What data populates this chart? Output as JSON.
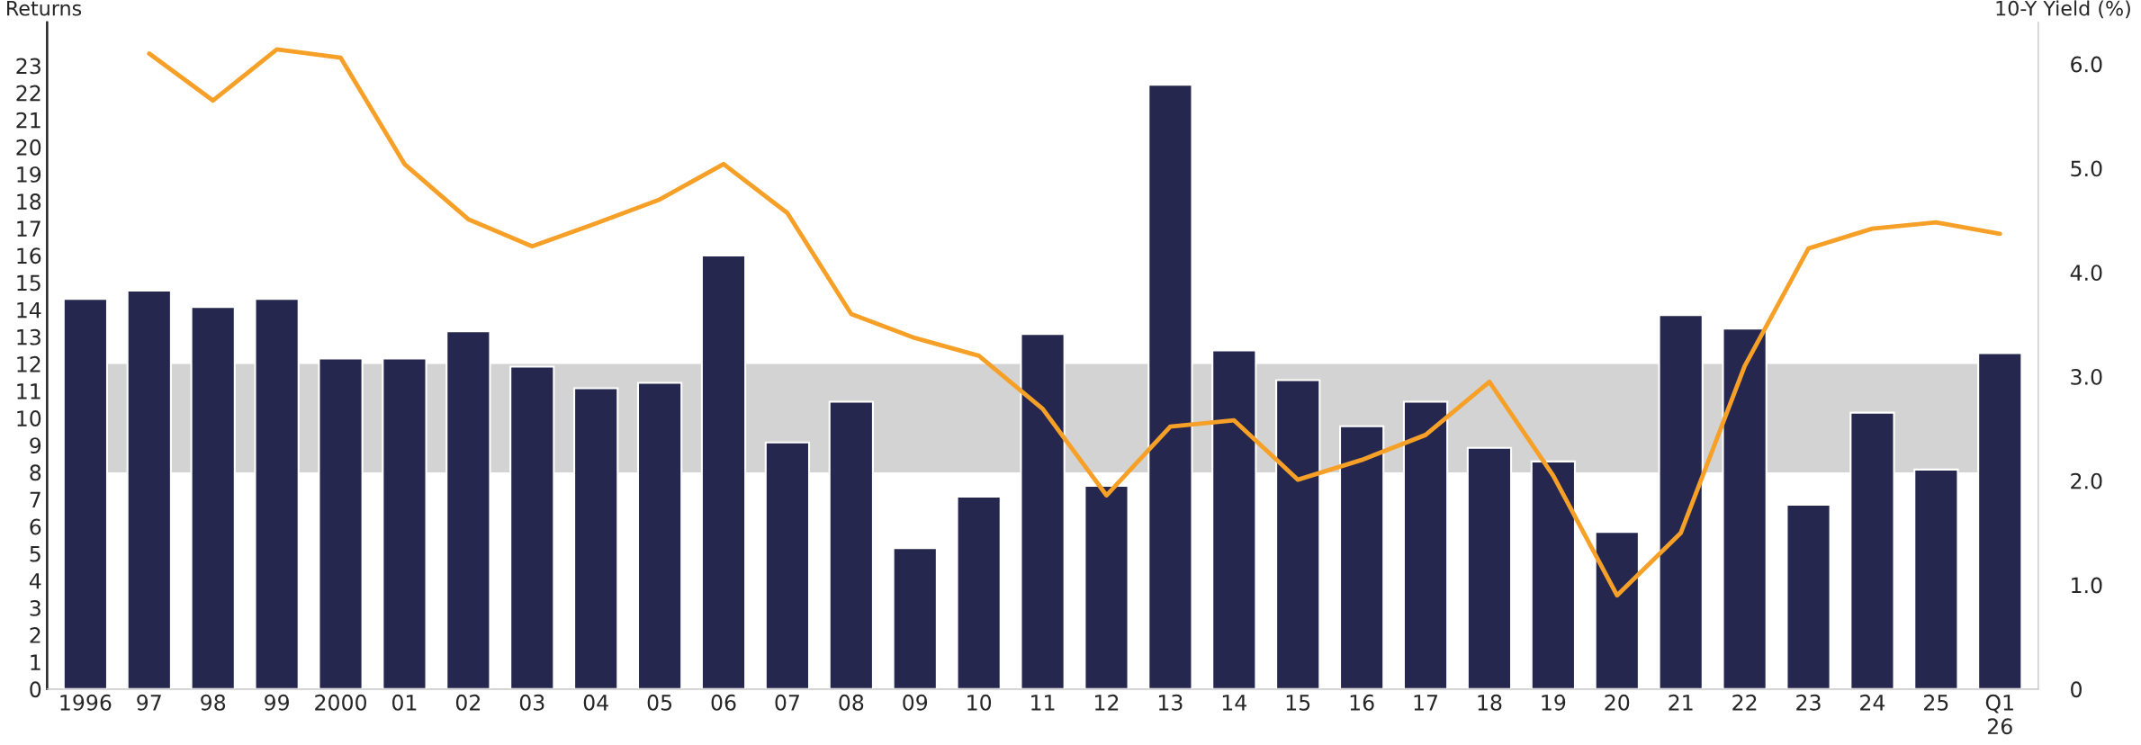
{
  "chart_data": {
    "type": "bar",
    "ylabel": "Returns",
    "y2label": "10-Y Yield (%)",
    "categories": [
      "1996",
      "97",
      "98",
      "99",
      "2000",
      "01",
      "02",
      "03",
      "04",
      "05",
      "06",
      "07",
      "08",
      "09",
      "10",
      "11",
      "12",
      "13",
      "14",
      "15",
      "16",
      "17",
      "18",
      "19",
      "20",
      "21",
      "22",
      "23",
      "24",
      "25",
      "Q1\n26"
    ],
    "series": [
      {
        "color": "#25274f",
        "values": [
          14.4,
          14.7,
          14.1,
          14.4,
          12.2,
          12.2,
          13.2,
          11.9,
          11.1,
          11.3,
          16.0,
          9.1,
          10.6,
          5.2,
          7.1,
          13.1,
          7.5,
          22.3,
          12.5,
          11.4,
          9.7,
          10.6,
          8.9,
          8.4,
          5.8,
          13.8,
          13.3,
          6.8,
          10.2,
          8.1,
          12.4
        ]
      },
      {
        "type": "line",
        "axis": "y2",
        "color": "#f7a027",
        "values": [
          null,
          6.1,
          5.65,
          6.14,
          6.06,
          5.04,
          4.51,
          4.25,
          4.47,
          4.7,
          5.04,
          4.57,
          3.6,
          3.37,
          3.2,
          2.69,
          1.86,
          2.52,
          2.58,
          2.01,
          2.2,
          2.44,
          2.95,
          2.05,
          0.9,
          1.5,
          3.1,
          4.23,
          4.42,
          4.48,
          4.37
        ]
      }
    ],
    "ylim": [
      0,
      24.6
    ],
    "yticks": [
      0,
      1,
      2,
      3,
      4,
      5,
      6,
      7,
      8,
      9,
      10,
      11,
      12,
      13,
      14,
      15,
      16,
      17,
      18,
      19,
      20,
      21,
      22,
      23
    ],
    "y2lim": [
      0,
      6.4
    ],
    "y2ticks": [
      0,
      {
        "value": 1,
        "label": "1.0"
      },
      {
        "value": 2,
        "label": "2.0"
      },
      {
        "value": 3,
        "label": "3.0"
      },
      {
        "value": 4,
        "label": "4.0"
      },
      {
        "value": 5,
        "label": "5.0"
      },
      {
        "value": 6,
        "label": "6.0"
      }
    ],
    "bands": [
      {
        "axis": "y",
        "from": 8,
        "to": 12,
        "color": "#d3d3d3"
      }
    ],
    "grid": false,
    "legend": false,
    "marker": "none",
    "line_style": "solid"
  }
}
